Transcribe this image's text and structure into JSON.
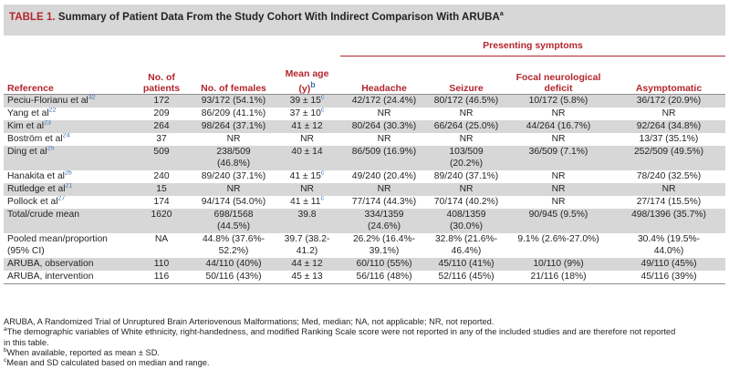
{
  "title": {
    "number": "TABLE 1.",
    "text": "Summary of Patient Data From the Study Cohort With Indirect Comparison With ARUBA",
    "sup": "a"
  },
  "header": {
    "group": "Presenting symptoms",
    "reference": "Reference",
    "patients_line1": "No. of",
    "patients_line2": "patients",
    "females": "No. of females",
    "age_line1": "Mean age",
    "age_line2": "(y)",
    "age_sup": "b",
    "headache": "Headache",
    "seizure": "Seizure",
    "focal_line1": "Focal neurological",
    "focal_line2": "deficit",
    "asymptomatic": "Asymptomatic"
  },
  "rows": [
    {
      "ref": "Peciu-Florianu et al",
      "refsup": "32",
      "n": "172",
      "fem": [
        "93/172 (54.1%)"
      ],
      "age": [
        "39 ± 15"
      ],
      "agesup": "c",
      "head": [
        "42/172 (24.4%)"
      ],
      "seiz": [
        "80/172 (46.5%)"
      ],
      "focal": [
        "10/172 (5.8%)"
      ],
      "asym": [
        "36/172 (20.9%)"
      ],
      "grey": true
    },
    {
      "ref": "Yang et al",
      "refsup": "22",
      "n": "209",
      "fem": [
        "86/209 (41.1%)"
      ],
      "age": [
        "37 ± 10"
      ],
      "agesup": "c",
      "head": [
        "NR"
      ],
      "seiz": [
        "NR"
      ],
      "focal": [
        "NR"
      ],
      "asym": [
        "NR"
      ]
    },
    {
      "ref": "Kim et al",
      "refsup": "23",
      "n": "264",
      "fem": [
        "98/264 (37.1%)"
      ],
      "age": [
        "41 ± 12"
      ],
      "agesup": "",
      "head": [
        "80/264 (30.3%)"
      ],
      "seiz": [
        "66/264 (25.0%)"
      ],
      "focal": [
        "44/264 (16.7%)"
      ],
      "asym": [
        "92/264 (34.8%)"
      ],
      "grey": true
    },
    {
      "ref": "Boström et al",
      "refsup": "24",
      "n": "37",
      "fem": [
        "NR"
      ],
      "age": [
        "NR"
      ],
      "agesup": "",
      "head": [
        "NR"
      ],
      "seiz": [
        "NR"
      ],
      "focal": [
        "NR"
      ],
      "asym": [
        "13/37 (35.1%)"
      ]
    },
    {
      "ref": "Ding et al",
      "refsup": "25",
      "n": "509",
      "fem": [
        "238/509",
        "(46.8%)"
      ],
      "age": [
        "40 ± 14"
      ],
      "agesup": "",
      "head": [
        "86/509 (16.9%)"
      ],
      "seiz": [
        "103/509",
        "(20.2%)"
      ],
      "focal": [
        "36/509 (7.1%)"
      ],
      "asym": [
        "252/509 (49.5%)"
      ],
      "grey": true,
      "tall": true
    },
    {
      "ref": "Hanakita et al",
      "refsup": "26",
      "n": "240",
      "fem": [
        "89/240 (37.1%)"
      ],
      "age": [
        "41 ± 15"
      ],
      "agesup": "c",
      "head": [
        "49/240 (20.4%)"
      ],
      "seiz": [
        "89/240 (37.1%)"
      ],
      "focal": [
        "NR"
      ],
      "asym": [
        "78/240 (32.5%)"
      ]
    },
    {
      "ref": "Rutledge et al",
      "refsup": "21",
      "n": "15",
      "fem": [
        "NR"
      ],
      "age": [
        "NR"
      ],
      "agesup": "",
      "head": [
        "NR"
      ],
      "seiz": [
        "NR"
      ],
      "focal": [
        "NR"
      ],
      "asym": [
        "NR"
      ],
      "grey": true
    },
    {
      "ref": "Pollock et al",
      "refsup": "27",
      "n": "174",
      "fem": [
        "94/174 (54.0%)"
      ],
      "age": [
        "41 ± 11"
      ],
      "agesup": "c",
      "head": [
        "77/174 (44.3%)"
      ],
      "seiz": [
        "70/174 (40.2%)"
      ],
      "focal": [
        "NR"
      ],
      "asym": [
        "27/174 (15.5%)"
      ]
    },
    {
      "ref": "Total/crude mean",
      "refsup": "",
      "n": "1620",
      "fem": [
        "698/1568",
        "(44.5%)"
      ],
      "age": [
        "39.8"
      ],
      "agesup": "",
      "head": [
        "334/1359",
        "(24.6%)"
      ],
      "seiz": [
        "408/1359",
        "(30.0%)"
      ],
      "focal": [
        "90/945 (9.5%)"
      ],
      "asym": [
        "498/1396 (35.7%)"
      ],
      "grey": true,
      "tall": true
    },
    {
      "ref": "Pooled mean/proportion",
      "ref2": "(95% CI)",
      "refsup": "",
      "n": "NA",
      "fem": [
        "44.8% (37.6%-",
        "52.2%)"
      ],
      "age": [
        "39.7 (38.2-",
        "41.2)"
      ],
      "agesup": "",
      "head": [
        "26.2% (16.4%-",
        "39.1%)"
      ],
      "seiz": [
        "32.8% (21.6%-",
        "46.4%)"
      ],
      "focal": [
        "9.1% (2.6%-27.0%)"
      ],
      "asym": [
        "30.4% (19.5%-",
        "44.0%)"
      ],
      "tall": true
    },
    {
      "ref": "ARUBA, observation",
      "refsup": "",
      "n": "110",
      "fem": [
        "44/110 (40%)"
      ],
      "age": [
        "44 ± 12"
      ],
      "agesup": "",
      "head": [
        "60/110 (55%)"
      ],
      "seiz": [
        "45/110 (41%)"
      ],
      "focal": [
        "10/110 (9%)"
      ],
      "asym": [
        "49/110 (45%)"
      ],
      "grey": true
    },
    {
      "ref": "ARUBA, intervention",
      "refsup": "",
      "n": "116",
      "fem": [
        "50/116 (43%)"
      ],
      "age": [
        "45 ± 13"
      ],
      "agesup": "",
      "head": [
        "56/116 (48%)"
      ],
      "seiz": [
        "52/116 (45%)"
      ],
      "focal": [
        "21/116 (18%)"
      ],
      "asym": [
        "45/116 (39%)"
      ],
      "last": true
    }
  ],
  "footnotes": {
    "abbrev": "ARUBA, A Randomized Trial of Unruptured Brain Arteriovenous Malformations; Med, median; NA, not applicable; NR, not reported.",
    "a_mark": "a",
    "a_text_line1": "The demographic variables of White ethnicity, right-handedness, and modified Ranking Scale score were not reported in any of the included studies and are therefore not reported",
    "a_text_line2": "in this table.",
    "b_mark": "b",
    "b_text": "When available, reported as mean ± SD.",
    "c_mark": "c",
    "c_text": "Mean and SD calculated based on median and range."
  },
  "colors": {
    "accent": "#b3262d",
    "band": "#d7d7d8",
    "reference_link": "#3b6fb5"
  }
}
